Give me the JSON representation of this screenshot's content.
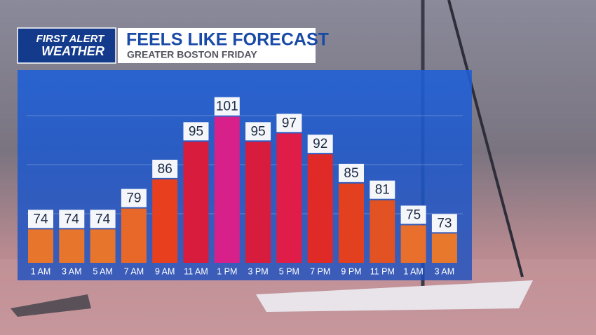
{
  "logo": {
    "line1": "FIRST ALERT",
    "line2": "WEATHER"
  },
  "chart_data": {
    "type": "bar",
    "title": "FEELS LIKE FORECAST",
    "subtitle": "GREATER BOSTON FRIDAY",
    "categories": [
      "1 AM",
      "3 AM",
      "5 AM",
      "7 AM",
      "9 AM",
      "11 AM",
      "1 PM",
      "3 PM",
      "5 PM",
      "7 PM",
      "9 PM",
      "11 PM",
      "1 AM",
      "3 AM"
    ],
    "values": [
      74,
      74,
      74,
      79,
      86,
      95,
      101,
      95,
      97,
      92,
      85,
      81,
      75,
      73
    ],
    "colors": [
      "#e8752c",
      "#e8752c",
      "#e8752c",
      "#e8682a",
      "#e8401e",
      "#d81c3e",
      "#d8208a",
      "#d81c3e",
      "#e01c48",
      "#e02a28",
      "#e2401e",
      "#e25222",
      "#e8702c",
      "#e8782c"
    ],
    "ylim": [
      66,
      110
    ]
  }
}
